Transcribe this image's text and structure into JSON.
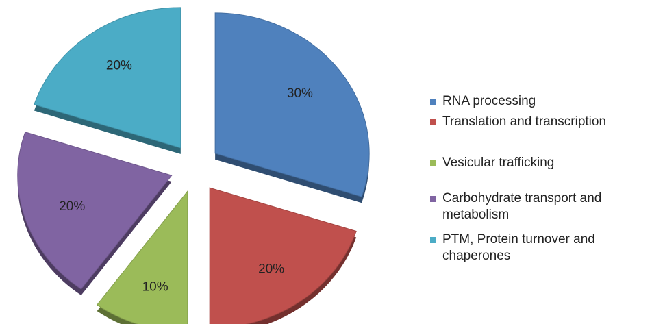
{
  "chart_data": {
    "type": "pie",
    "categories": [
      "RNA processing",
      "Translation and transcription",
      "Vesicular trafficking",
      "Carbohydrate transport and metabolism",
      "PTM, Protein turnover and chaperones"
    ],
    "values": [
      30,
      20,
      10,
      20,
      20
    ],
    "value_labels": [
      "30%",
      "20%",
      "10%",
      "20%",
      "20%"
    ],
    "colors": [
      "#4f81bd",
      "#c0504d",
      "#9bbb59",
      "#8064a2",
      "#4bacc6"
    ],
    "legend": "right"
  }
}
